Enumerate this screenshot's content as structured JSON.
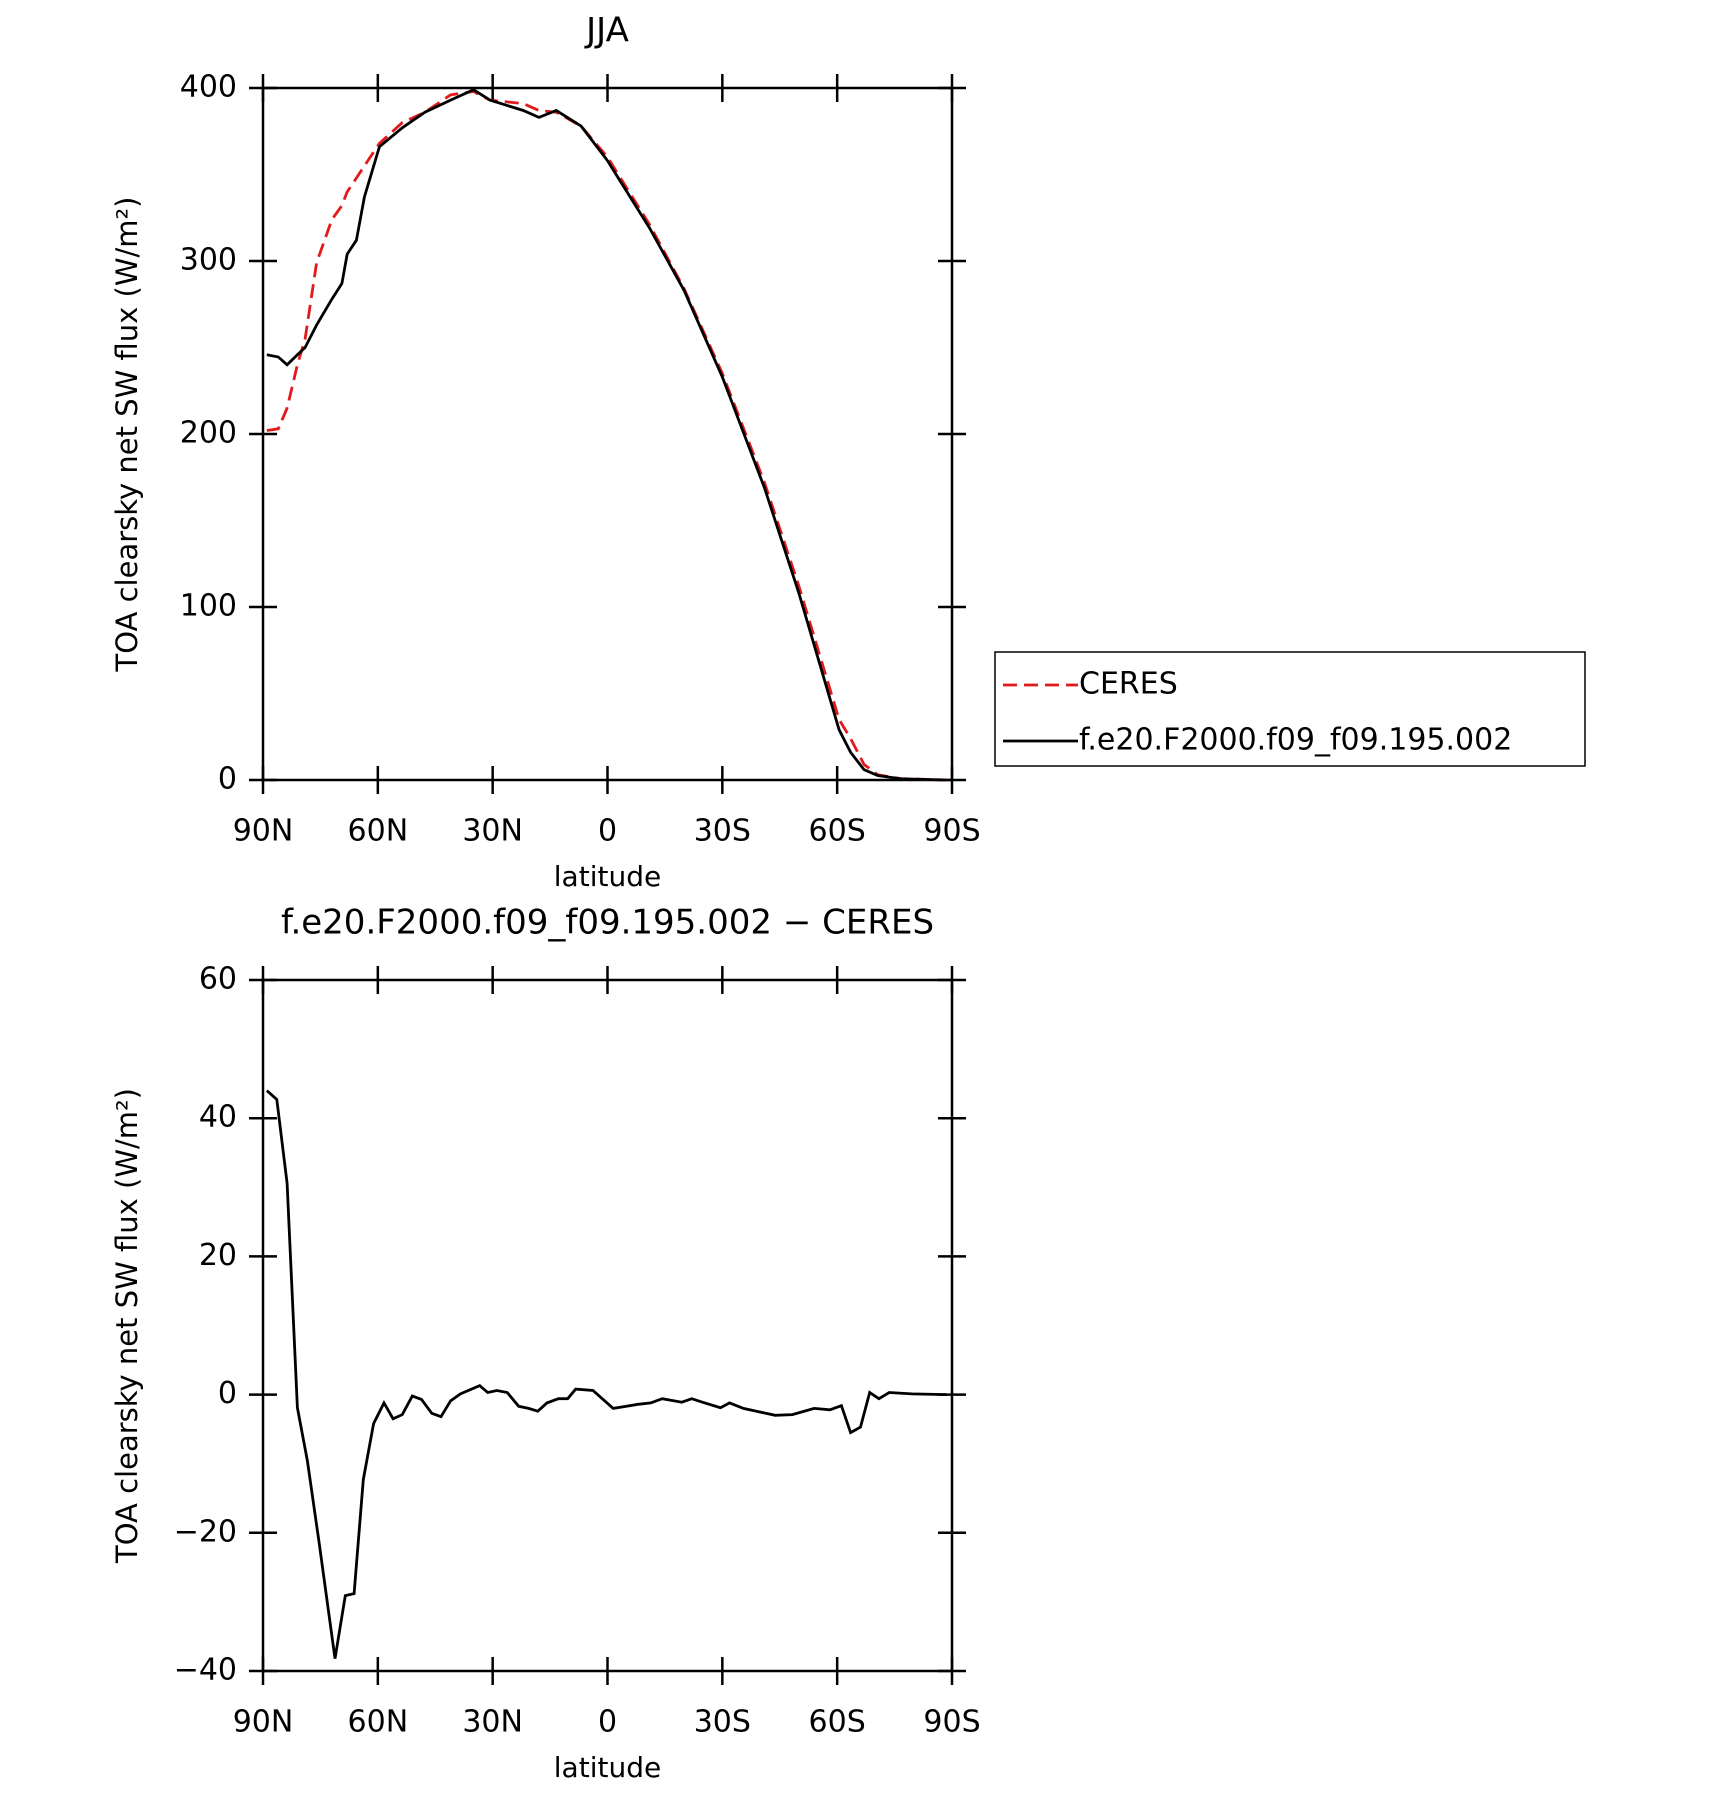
{
  "chart_data": [
    {
      "type": "line",
      "title": "JJA",
      "xlabel": "latitude",
      "ylabel": "TOA clearsky net SW flux (W/m²)",
      "x": [
        89,
        86,
        83.7,
        81,
        79,
        76,
        72,
        69.4,
        68,
        65.6,
        63.5,
        59.6,
        53.6,
        47.7,
        41,
        35,
        30.7,
        22,
        17.9,
        13.4,
        6.9,
        0,
        -11,
        -20,
        -30,
        -41,
        -50,
        -60.5,
        -63.5,
        -67,
        -70.6,
        -76.6,
        -88.5
      ],
      "series": [
        {
          "name": "CERES",
          "color": "#e31a1c",
          "dash": "dashed",
          "values": [
            202,
            203,
            215,
            240,
            255,
            299,
            324,
            332,
            340,
            348,
            355,
            368,
            380,
            386,
            396,
            398,
            393,
            391,
            387,
            386,
            378,
            360,
            321,
            284,
            235,
            172,
            112,
            35,
            24,
            9,
            3,
            0.8,
            0
          ]
        },
        {
          "name": "f.e20.F2000.f09_f09.195.002",
          "color": "#000000",
          "dash": "solid",
          "values": [
            245.8,
            244.5,
            240,
            245.8,
            250,
            263,
            278,
            287,
            304,
            312,
            337,
            366,
            377,
            386,
            393,
            399,
            393,
            387,
            383,
            387,
            378,
            358,
            319,
            283,
            233,
            169,
            108,
            29,
            16,
            6,
            2.6,
            0.7,
            0
          ]
        }
      ],
      "xlim": [
        90,
        -90
      ],
      "xticks": [
        {
          "value": 90,
          "label": "90N"
        },
        {
          "value": 60,
          "label": "60N"
        },
        {
          "value": 30,
          "label": "30N"
        },
        0,
        {
          "value": -30,
          "label": "30S"
        },
        {
          "value": -60,
          "label": "60S"
        },
        {
          "value": -90,
          "label": "90S"
        }
      ],
      "ylim": [
        0,
        400
      ],
      "yticks": [
        0,
        100,
        200,
        300,
        400
      ],
      "legend": "right"
    },
    {
      "type": "line",
      "title": "f.e20.F2000.f09_f09.195.002 − CERES",
      "xlabel": "latitude",
      "ylabel": "TOA clearsky net SW flux (W/m²)",
      "x": [
        89,
        86.4,
        83.7,
        81,
        78.4,
        75.4,
        71.2,
        68.5,
        66.2,
        63.8,
        61.1,
        58.4,
        56,
        53.6,
        51,
        48.6,
        45.9,
        43.5,
        41,
        38.4,
        33.4,
        31.3,
        28.9,
        26.2,
        23.2,
        20.6,
        18.2,
        15.8,
        12.8,
        10.4,
        8.3,
        3.8,
        -1.5,
        -8,
        -11.3,
        -14.3,
        -19.4,
        -22,
        -24.8,
        -29.5,
        -31.9,
        -35.5,
        -43.8,
        -48.3,
        -54,
        -58.1,
        -61.1,
        -63.5,
        -66.1,
        -68.5,
        -70.9,
        -73.6,
        -79.5,
        -88.5
      ],
      "series": [
        {
          "color": "#000000",
          "dash": "solid",
          "values": [
            44,
            42.7,
            30.6,
            -1.9,
            -9.6,
            -21.2,
            -38.2,
            -29.1,
            -28.8,
            -12.3,
            -4.2,
            -1.2,
            -3.5,
            -2.9,
            -0.2,
            -0.7,
            -2.7,
            -3.2,
            -0.9,
            0.1,
            1.3,
            0.3,
            0.6,
            0.3,
            -1.7,
            -2.0,
            -2.4,
            -1.2,
            -0.6,
            -0.6,
            0.8,
            0.6,
            -2.0,
            -1.4,
            -1.2,
            -0.6,
            -1.1,
            -0.6,
            -1.1,
            -1.9,
            -1.2,
            -2.0,
            -3.0,
            -2.9,
            -2.0,
            -2.2,
            -1.6,
            -5.5,
            -4.7,
            0.3,
            -0.6,
            0.3,
            0.1,
            0
          ]
        }
      ],
      "xlim": [
        90,
        -90
      ],
      "xticks": [
        {
          "value": 90,
          "label": "90N"
        },
        {
          "value": 60,
          "label": "60N"
        },
        {
          "value": 30,
          "label": "30N"
        },
        0,
        {
          "value": -30,
          "label": "30S"
        },
        {
          "value": -60,
          "label": "60S"
        },
        {
          "value": -90,
          "label": "90S"
        }
      ],
      "ylim": [
        -40,
        60
      ],
      "yticks": [
        {
          "value": -40,
          "label": "−40"
        },
        {
          "value": -20,
          "label": "−20"
        },
        0,
        20,
        40,
        60
      ]
    }
  ]
}
